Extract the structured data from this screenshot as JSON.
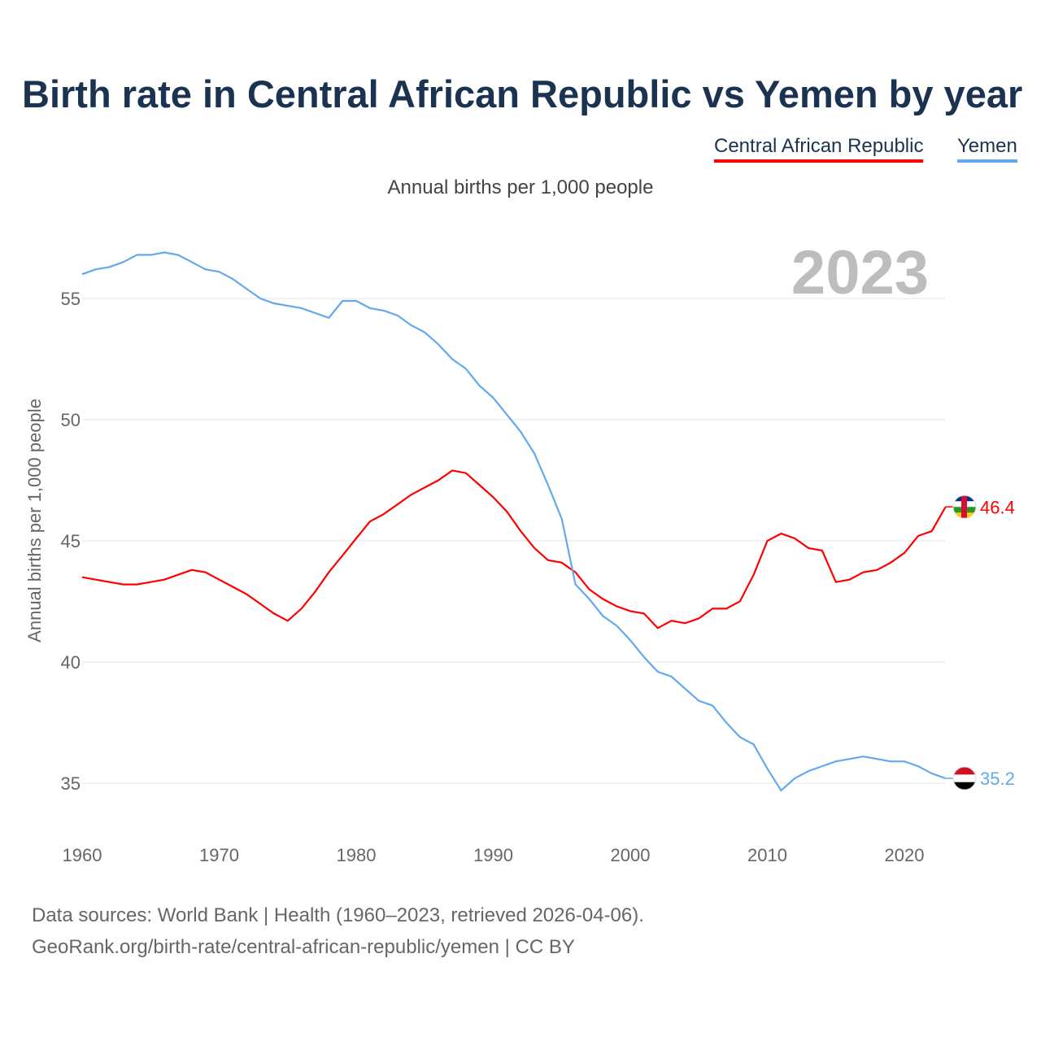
{
  "title": "Birth rate in Central African Republic vs Yemen by year",
  "subtitle": "Annual births per 1,000 people",
  "year_label": "2023",
  "footer": {
    "line1": "Data sources: World Bank | Health (1960–2023, retrieved 2026-04-06).",
    "line2": "GeoRank.org/birth-rate/central-african-republic/yemen | CC BY"
  },
  "chart_data": {
    "type": "line",
    "title": "Birth rate in Central African Republic vs Yemen by year",
    "ylabel": "Annual births per 1,000 people",
    "xlabel": "",
    "xlim": [
      1960,
      2023
    ],
    "ylim": [
      35,
      55
    ],
    "xticks": [
      "1960",
      "1970",
      "1980",
      "1990",
      "2000",
      "2010",
      "2020"
    ],
    "yticks": [
      "35",
      "40",
      "45",
      "50",
      "55"
    ],
    "grid": true,
    "legend": "top-right",
    "x": [
      1960,
      1961,
      1962,
      1963,
      1964,
      1965,
      1966,
      1967,
      1968,
      1969,
      1970,
      1971,
      1972,
      1973,
      1974,
      1975,
      1976,
      1977,
      1978,
      1979,
      1980,
      1981,
      1982,
      1983,
      1984,
      1985,
      1986,
      1987,
      1988,
      1989,
      1990,
      1991,
      1992,
      1993,
      1994,
      1995,
      1996,
      1997,
      1998,
      1999,
      2000,
      2001,
      2002,
      2003,
      2004,
      2005,
      2006,
      2007,
      2008,
      2009,
      2010,
      2011,
      2012,
      2013,
      2014,
      2015,
      2016,
      2017,
      2018,
      2019,
      2020,
      2021,
      2022,
      2023
    ],
    "series": [
      {
        "name": "Central African Republic",
        "color": "#ff0000",
        "end_label": "46.4",
        "values": [
          43.5,
          43.4,
          43.3,
          43.2,
          43.2,
          43.3,
          43.4,
          43.6,
          43.8,
          43.7,
          43.4,
          43.1,
          42.8,
          42.4,
          42.0,
          41.7,
          42.2,
          42.9,
          43.7,
          44.4,
          45.1,
          45.8,
          46.1,
          46.5,
          46.9,
          47.2,
          47.5,
          47.9,
          47.8,
          47.3,
          46.8,
          46.2,
          45.4,
          44.7,
          44.2,
          44.1,
          43.7,
          43.0,
          42.6,
          42.3,
          42.1,
          42.0,
          41.4,
          41.7,
          41.6,
          41.8,
          42.2,
          42.2,
          42.5,
          43.6,
          45.0,
          45.3,
          45.1,
          44.7,
          44.6,
          43.3,
          43.4,
          43.7,
          43.8,
          44.1,
          44.5,
          45.2,
          45.4,
          46.4
        ]
      },
      {
        "name": "Yemen",
        "color": "#62a9ee",
        "end_label": "35.2",
        "values": [
          56.0,
          56.2,
          56.3,
          56.5,
          56.8,
          56.8,
          56.9,
          56.8,
          56.5,
          56.2,
          56.1,
          55.8,
          55.4,
          55.0,
          54.8,
          54.7,
          54.6,
          54.4,
          54.2,
          54.9,
          54.9,
          54.6,
          54.5,
          54.3,
          53.9,
          53.6,
          53.1,
          52.5,
          52.1,
          51.4,
          50.9,
          50.2,
          49.5,
          48.6,
          47.3,
          45.9,
          43.2,
          42.6,
          41.9,
          41.5,
          40.9,
          40.2,
          39.6,
          39.4,
          38.9,
          38.4,
          38.2,
          37.5,
          36.9,
          36.6,
          35.6,
          34.7,
          35.2,
          35.5,
          35.7,
          35.9,
          36.0,
          36.1,
          36.0,
          35.9,
          35.9,
          35.7,
          35.4,
          35.2
        ]
      }
    ]
  }
}
